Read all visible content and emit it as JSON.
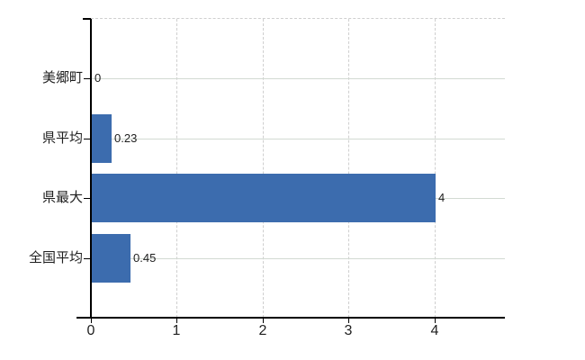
{
  "chart_data": {
    "type": "bar",
    "orientation": "horizontal",
    "title": "",
    "xlabel": "",
    "ylabel": "",
    "categories": [
      "美郷町",
      "県平均",
      "県最大",
      "全国平均"
    ],
    "values": [
      0,
      0.23,
      4,
      0.45
    ],
    "value_labels": [
      "0",
      "0.23",
      "4",
      "0.45"
    ],
    "xticks": [
      0,
      1,
      2,
      3,
      4
    ],
    "xtick_labels": [
      "0",
      "1",
      "2",
      "3",
      "4"
    ],
    "xlim": [
      0,
      4.82
    ],
    "grid": true,
    "legend": false,
    "colors": {
      "bar": "#3c6cae",
      "vertical_grid": "#cfcfcf",
      "horizontal_grid": "#d2dad2",
      "axis": "#000000",
      "text": "#1f1f1f",
      "background": "#ffffff"
    }
  }
}
